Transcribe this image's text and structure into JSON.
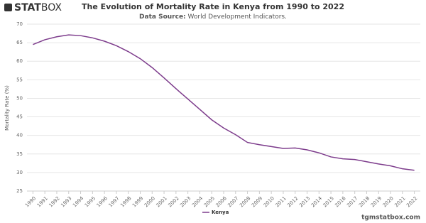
{
  "logo": {
    "bold": "STAT",
    "light": "BOX"
  },
  "footer": "tgmstatbox.com",
  "chart_data": {
    "type": "line",
    "title": "The Evolution of Mortality Rate in Kenya from 1990 to 2022",
    "subtitle_label": "Data Source:",
    "subtitle": "World Development Indicators.",
    "y_label": "Mortality Rate (%)",
    "categories": [
      "1990",
      "1991",
      "1992",
      "1993",
      "1994",
      "1995",
      "1996",
      "1997",
      "1998",
      "1999",
      "2000",
      "2001",
      "2002",
      "2003",
      "2004",
      "2005",
      "2006",
      "2007",
      "2008",
      "2009",
      "2010",
      "2011",
      "2012",
      "2013",
      "2014",
      "2015",
      "2016",
      "2017",
      "2018",
      "2019",
      "2020",
      "2021",
      "2022"
    ],
    "series": [
      {
        "name": "Kenya",
        "color": "#7d3c8c",
        "values": [
          64.5,
          65.8,
          66.6,
          67.1,
          66.9,
          66.3,
          65.4,
          64.2,
          62.6,
          60.7,
          58.3,
          55.5,
          52.6,
          49.8,
          47.0,
          44.2,
          42.0,
          40.2,
          38.1,
          37.5,
          37.0,
          36.5,
          36.6,
          36.1,
          35.3,
          34.2,
          33.7,
          33.5,
          32.9,
          32.3,
          31.8,
          31.0,
          30.6
        ]
      }
    ],
    "ylim": [
      25,
      70
    ],
    "yticks": [
      25,
      30,
      35,
      40,
      45,
      50,
      55,
      60,
      65,
      70
    ],
    "grid": true
  }
}
